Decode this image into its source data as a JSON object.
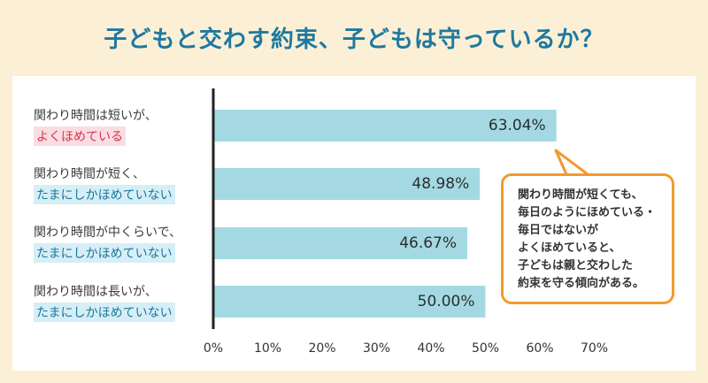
{
  "title": "子どもと交わす約束、子どもは守っているか？",
  "callout": {
    "lines": [
      "関わり時間が短くても、",
      "毎日のようにほめている・",
      "毎日ではないが",
      "よくほめていると、",
      "子どもは親と交わした",
      "約束を守る傾向がある。"
    ]
  },
  "chart_data": {
    "type": "bar",
    "orientation": "horizontal",
    "title": "子どもと交わす約束、子どもは守っているか？",
    "categories": [
      {
        "line1": "関わり時間は短いが、",
        "line2": "よくほめている"
      },
      {
        "line1": "関わり時間が短く、",
        "line2": "たまにしかほめていない"
      },
      {
        "line1": "関わり時間が中くらいで、",
        "line2": "たまにしかほめていない"
      },
      {
        "line1": "関わり時間は長いが、",
        "line2": "たまにしかほめていない"
      }
    ],
    "values": [
      63.04,
      48.98,
      46.67,
      50.0
    ],
    "value_labels": [
      "63.04%",
      "48.98%",
      "46.67%",
      "50.00%"
    ],
    "xlim": [
      0,
      70
    ],
    "ticks": [
      "0%",
      "10%",
      "20%",
      "30%",
      "40%",
      "50%",
      "60%",
      "70%"
    ],
    "colors": {
      "bar": "#a4d9e3",
      "axis": "#222222",
      "callout_border": "#f39a2e"
    }
  }
}
